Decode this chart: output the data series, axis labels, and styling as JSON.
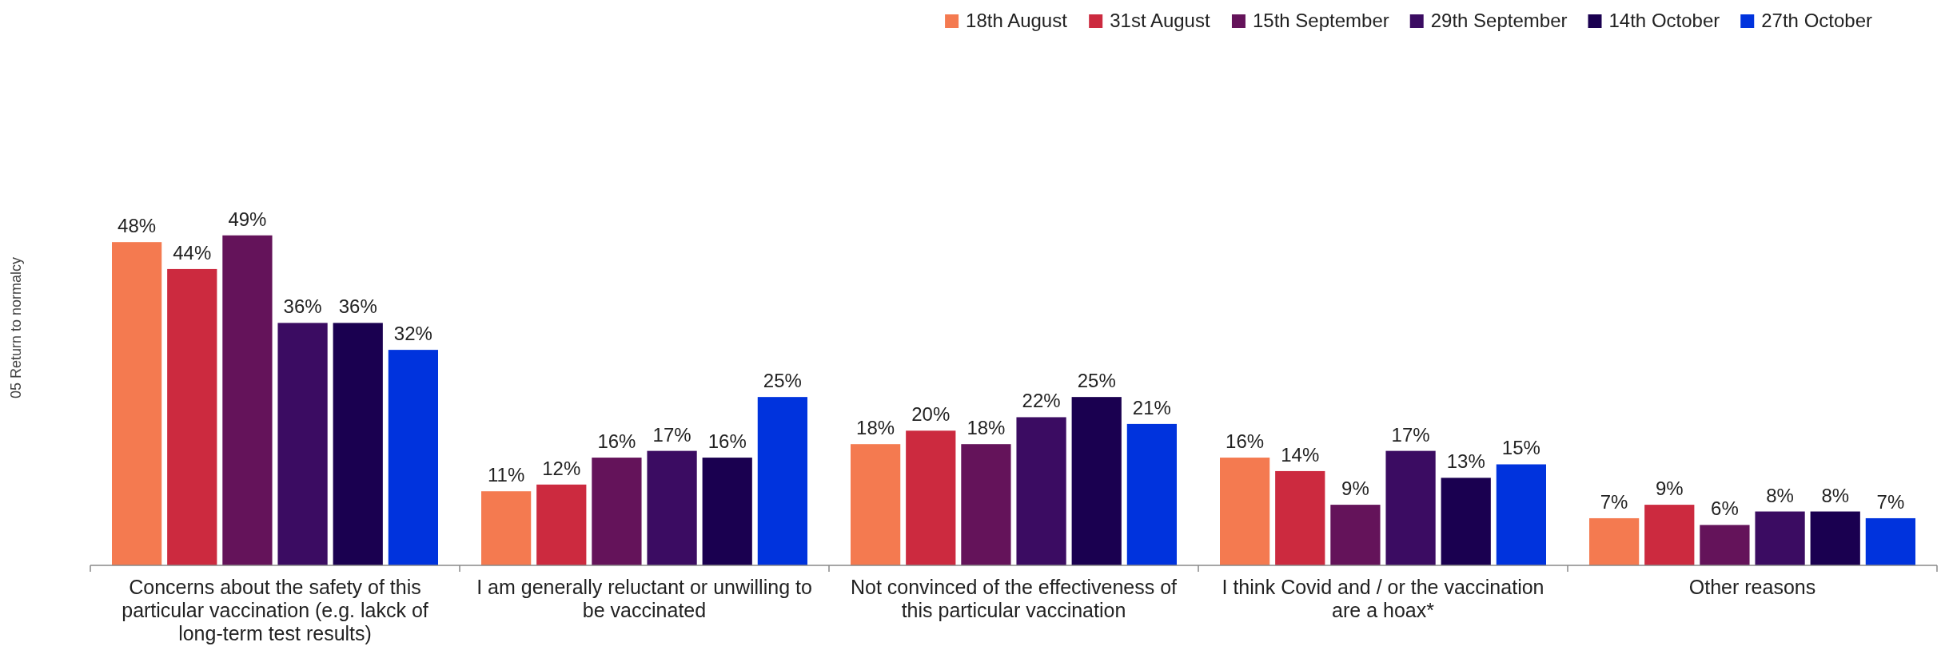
{
  "chart_data": {
    "type": "bar",
    "ylabel": "05 Return to normalcy",
    "categories": [
      "Concerns about the safety of this particular vaccination (e.g. lakck of long-term test results)",
      "I am generally reluctant or unwilling to be vaccinated",
      "Not convinced of the effectiveness of this particular vaccination",
      "I think Covid and / or the vaccination are a hoax*",
      "Other reasons"
    ],
    "series": [
      {
        "name": "18th August",
        "color": "#f47a50",
        "values": [
          48,
          11,
          18,
          16,
          7
        ],
        "value_labels": [
          "48%",
          "11%",
          "18%",
          "16%",
          "7%"
        ]
      },
      {
        "name": "31st August",
        "color": "#cc2a3f",
        "values": [
          44,
          12,
          20,
          14,
          9
        ],
        "value_labels": [
          "44%",
          "12%",
          "20%",
          "14%",
          "9%"
        ]
      },
      {
        "name": "15th September",
        "color": "#64135a",
        "values": [
          49,
          16,
          18,
          9,
          6
        ],
        "value_labels": [
          "49%",
          "16%",
          "18%",
          "9%",
          "6%"
        ]
      },
      {
        "name": "29th September",
        "color": "#3b0c62",
        "values": [
          36,
          17,
          22,
          17,
          8
        ],
        "value_labels": [
          "36%",
          "17%",
          "22%",
          "17%",
          "8%"
        ]
      },
      {
        "name": "14th October",
        "color": "#1a0050",
        "values": [
          36,
          16,
          25,
          13,
          8
        ],
        "value_labels": [
          "36%",
          "16%",
          "25%",
          "13%",
          "8%"
        ]
      },
      {
        "name": "27th October",
        "color": "#0033dd",
        "values": [
          32,
          25,
          21,
          15,
          7
        ],
        "value_labels": [
          "32%",
          "25%",
          "21%",
          "15%",
          "7%"
        ]
      }
    ],
    "legend": "top right"
  }
}
